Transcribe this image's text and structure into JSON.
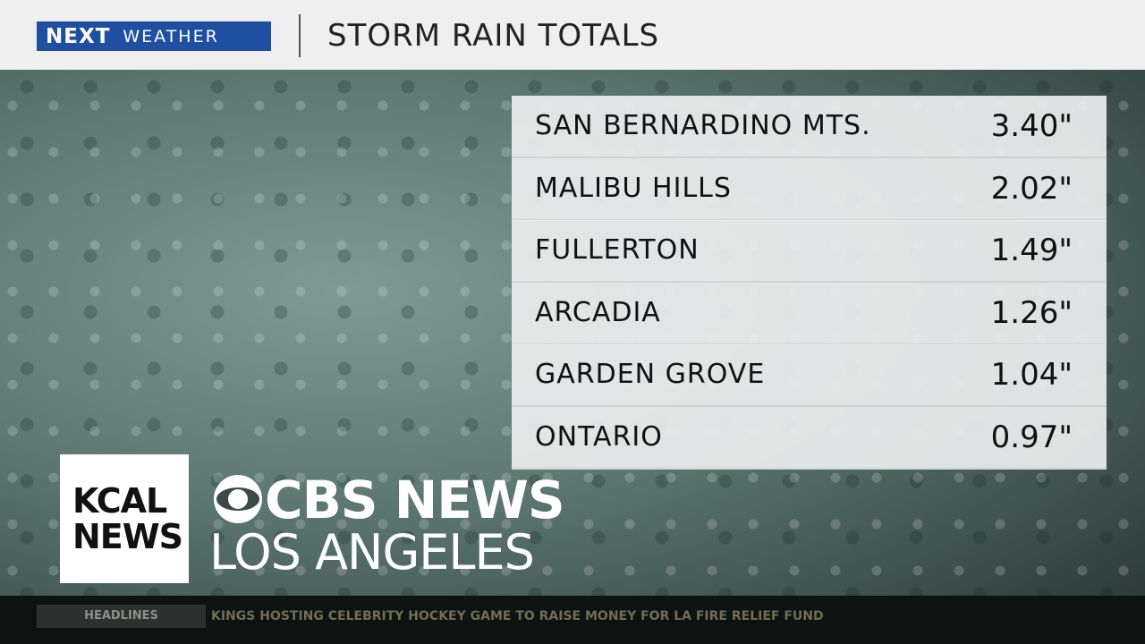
{
  "header": {
    "brand_1": "NEXT",
    "brand_2": "WEATHER",
    "title": "STORM RAIN TOTALS"
  },
  "table": {
    "rows": [
      [
        "SAN BERNARDINO MTS.",
        "3.40\""
      ],
      [
        "MALIBU HILLS",
        "2.02\""
      ],
      [
        "FULLERTON",
        "1.49\""
      ],
      [
        "ARCADIA",
        "1.26\""
      ],
      [
        "GARDEN GROVE",
        "1.04\""
      ],
      [
        "ONTARIO",
        "0.97\""
      ]
    ]
  },
  "logo": {
    "kcal_1": "KCAL",
    "kcal_2": "NEWS",
    "network": "CBS NEWS",
    "city": "LOS ANGELES"
  },
  "ticker": {
    "label": "HEADLINES",
    "text": "KINGS HOSTING CELEBRITY HOCKEY GAME TO RAISE MONEY FOR LA FIRE RELIEF FUND"
  }
}
